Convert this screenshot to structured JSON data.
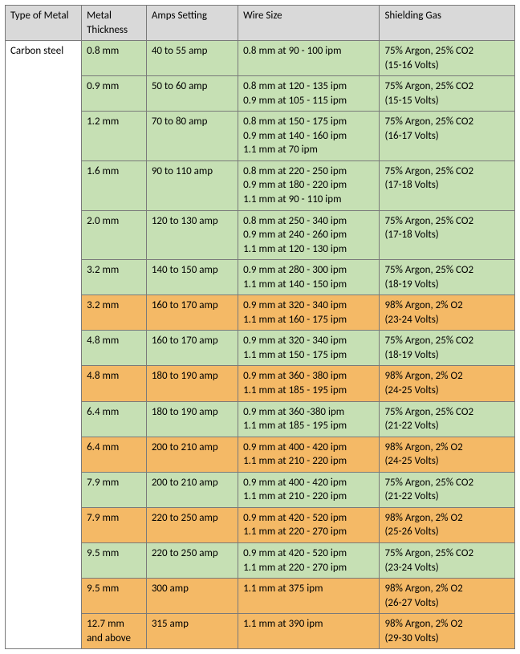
{
  "columns": [
    "Type of Metal",
    "Metal Thickness",
    "Amps Setting",
    "Wire Size",
    "Shielding Gas"
  ],
  "metal_type": "Carbon steel",
  "rows": [
    {
      "cls": "green",
      "thickness": "0.8 mm",
      "amps": "40 to 55 amp",
      "wire": [
        "0.8 mm at 90 - 100 ipm"
      ],
      "gas": [
        "75% Argon, 25% CO2",
        "(15-16 Volts)"
      ]
    },
    {
      "cls": "green",
      "thickness": "0.9 mm",
      "amps": "50 to 60 amp",
      "wire": [
        "0.8 mm at 120 - 135 ipm",
        "0.9 mm at 105 - 115 ipm"
      ],
      "gas": [
        "75% Argon, 25% CO2",
        "(15-15 Volts)"
      ]
    },
    {
      "cls": "green",
      "thickness": "1.2 mm",
      "amps": "70 to 80 amp",
      "wire": [
        "0.8 mm at 150 - 175 ipm",
        "0.9 mm at 140 - 160 ipm",
        "1.1 mm at 70 ipm"
      ],
      "gas": [
        "75% Argon, 25% CO2",
        "(16-17 Volts)"
      ]
    },
    {
      "cls": "green",
      "thickness": "1.6 mm",
      "amps": "90 to 110 amp",
      "wire": [
        "0.8 mm at 220 - 250 ipm",
        "0.9 mm at 180 - 220 ipm",
        "1.1 mm at 90 - 110 ipm"
      ],
      "gas": [
        "75% Argon, 25% CO2",
        "(17-18 Volts)"
      ]
    },
    {
      "cls": "green",
      "thickness": "2.0 mm",
      "amps": "120 to 130 amp",
      "wire": [
        "0.8 mm at 250 - 340 ipm",
        "0.9 mm at 240 - 260 ipm",
        "1.1 mm at 120 - 130 ipm"
      ],
      "gas": [
        "75% Argon, 25% CO2",
        "(17-18 Volts)"
      ]
    },
    {
      "cls": "green",
      "thickness": "3.2 mm",
      "amps": "140 to 150 amp",
      "wire": [
        "0.9 mm at 280 - 300 ipm",
        "1.1 mm at 140 - 150 ipm"
      ],
      "gas": [
        "75% Argon, 25% CO2",
        "(18-19 Volts)"
      ]
    },
    {
      "cls": "orange",
      "thickness": "3.2 mm",
      "amps": "160 to 170 amp",
      "wire": [
        "0.9 mm at 320 - 340 ipm",
        "1.1 mm at 160 - 175 ipm"
      ],
      "gas": [
        "98% Argon, 2% O2",
        "(23-24 Volts)"
      ]
    },
    {
      "cls": "green",
      "thickness": "4.8 mm",
      "amps": "160 to 170 amp",
      "wire": [
        "0.9 mm at 320 - 340 ipm",
        "1.1 mm at 150 - 175 ipm"
      ],
      "gas": [
        "75% Argon, 25% CO2",
        "(18-19 Volts)"
      ]
    },
    {
      "cls": "orange",
      "thickness": "4.8 mm",
      "amps": "180 to 190 amp",
      "wire": [
        "0.9 mm at 360 - 380 ipm",
        "1.1 mm at 185 - 195 ipm"
      ],
      "gas": [
        "98% Argon, 2% O2",
        "(24-25 Volts)"
      ]
    },
    {
      "cls": "green",
      "thickness": "6.4 mm",
      "amps": "180 to 190 amp",
      "wire": [
        "0.9 mm at 360 -380 ipm",
        "1.1 mm at 185 - 195 ipm"
      ],
      "gas": [
        "75% Argon, 25% CO2",
        "(21-22 Volts)"
      ]
    },
    {
      "cls": "orange",
      "thickness": "6.4 mm",
      "amps": "200 to 210 amp",
      "wire": [
        "0.9 mm at 400 - 420 ipm",
        "1.1 mm at 210 - 220 ipm"
      ],
      "gas": [
        "98% Argon, 2% O2",
        "(24-25 Volts)"
      ]
    },
    {
      "cls": "green",
      "thickness": "7.9 mm",
      "amps": "200 to 210 amp",
      "wire": [
        "0.9 mm at 400 - 420 ipm",
        "1.1 mm at 210 - 220 ipm"
      ],
      "gas": [
        "75% Argon, 25% CO2",
        "(21-22 Volts)"
      ]
    },
    {
      "cls": "orange",
      "thickness": "7.9 mm",
      "amps": "220 to 250 amp",
      "wire": [
        "0.9 mm at 420 - 520 ipm",
        "1.1 mm at 220 - 270 ipm"
      ],
      "gas": [
        "98% Argon, 2% O2",
        "(25-26 Volts)"
      ]
    },
    {
      "cls": "green",
      "thickness": "9.5 mm",
      "amps": "220 to 250 amp",
      "wire": [
        "0.9 mm at 420 - 520 ipm",
        "1.1 mm at 220 - 270 ipm"
      ],
      "gas": [
        "75% Argon, 25% CO2",
        "(23-24 Volts)"
      ]
    },
    {
      "cls": "orange",
      "thickness": "9.5 mm",
      "amps": "300 amp",
      "wire": [
        "1.1 mm at 375 ipm"
      ],
      "gas": [
        "98% Argon, 2% O2",
        "(26-27 Volts)"
      ]
    },
    {
      "cls": "orange",
      "thickness": "12.7 mm and above",
      "amps": "315 amp",
      "wire": [
        "1.1 mm at 390 ipm"
      ],
      "gas": [
        "98% Argon, 2% O2",
        "(29-30 Volts)"
      ]
    }
  ]
}
